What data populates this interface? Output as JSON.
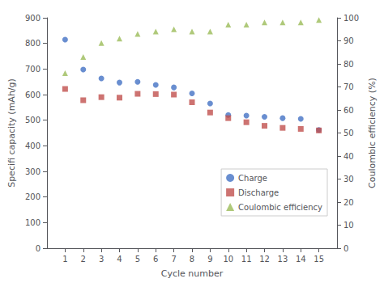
{
  "chart_data": {
    "type": "scatter",
    "x": [
      1,
      2,
      3,
      4,
      5,
      6,
      7,
      8,
      9,
      10,
      11,
      12,
      13,
      14,
      15
    ],
    "xlim": [
      0,
      16
    ],
    "xticks": [
      1,
      2,
      3,
      4,
      5,
      6,
      7,
      8,
      9,
      10,
      11,
      12,
      13,
      14,
      15
    ],
    "ylim": [
      0,
      900
    ],
    "yticks": [
      0,
      100,
      200,
      300,
      400,
      500,
      600,
      700,
      800,
      900
    ],
    "y2lim": [
      0,
      100
    ],
    "y2ticks": [
      0,
      10,
      20,
      30,
      40,
      50,
      60,
      70,
      80,
      90,
      100
    ],
    "xlabel": "Cycle number",
    "ylabel": "Specifi capacity (mAh/g)",
    "y2label": "Coulombic efficiency (%)",
    "grid": false,
    "legend": "lower right",
    "series": [
      {
        "name": "Charge",
        "color": "#4472c4",
        "marker": "circle",
        "axis": "y",
        "values": [
          815,
          698,
          663,
          647,
          650,
          638,
          628,
          605,
          565,
          520,
          518,
          513,
          508,
          505,
          462
        ]
      },
      {
        "name": "Discharge",
        "color": "#c0504d",
        "marker": "square",
        "axis": "y",
        "values": [
          622,
          578,
          590,
          588,
          603,
          602,
          600,
          570,
          530,
          508,
          492,
          478,
          470,
          466,
          460
        ]
      },
      {
        "name": "Coulombic efficiency",
        "color": "#9bbb59",
        "marker": "triangle",
        "axis": "y2",
        "values": [
          76,
          83,
          89,
          91,
          93,
          94,
          95,
          94,
          94,
          97,
          97,
          98,
          98,
          98,
          99
        ]
      }
    ]
  }
}
